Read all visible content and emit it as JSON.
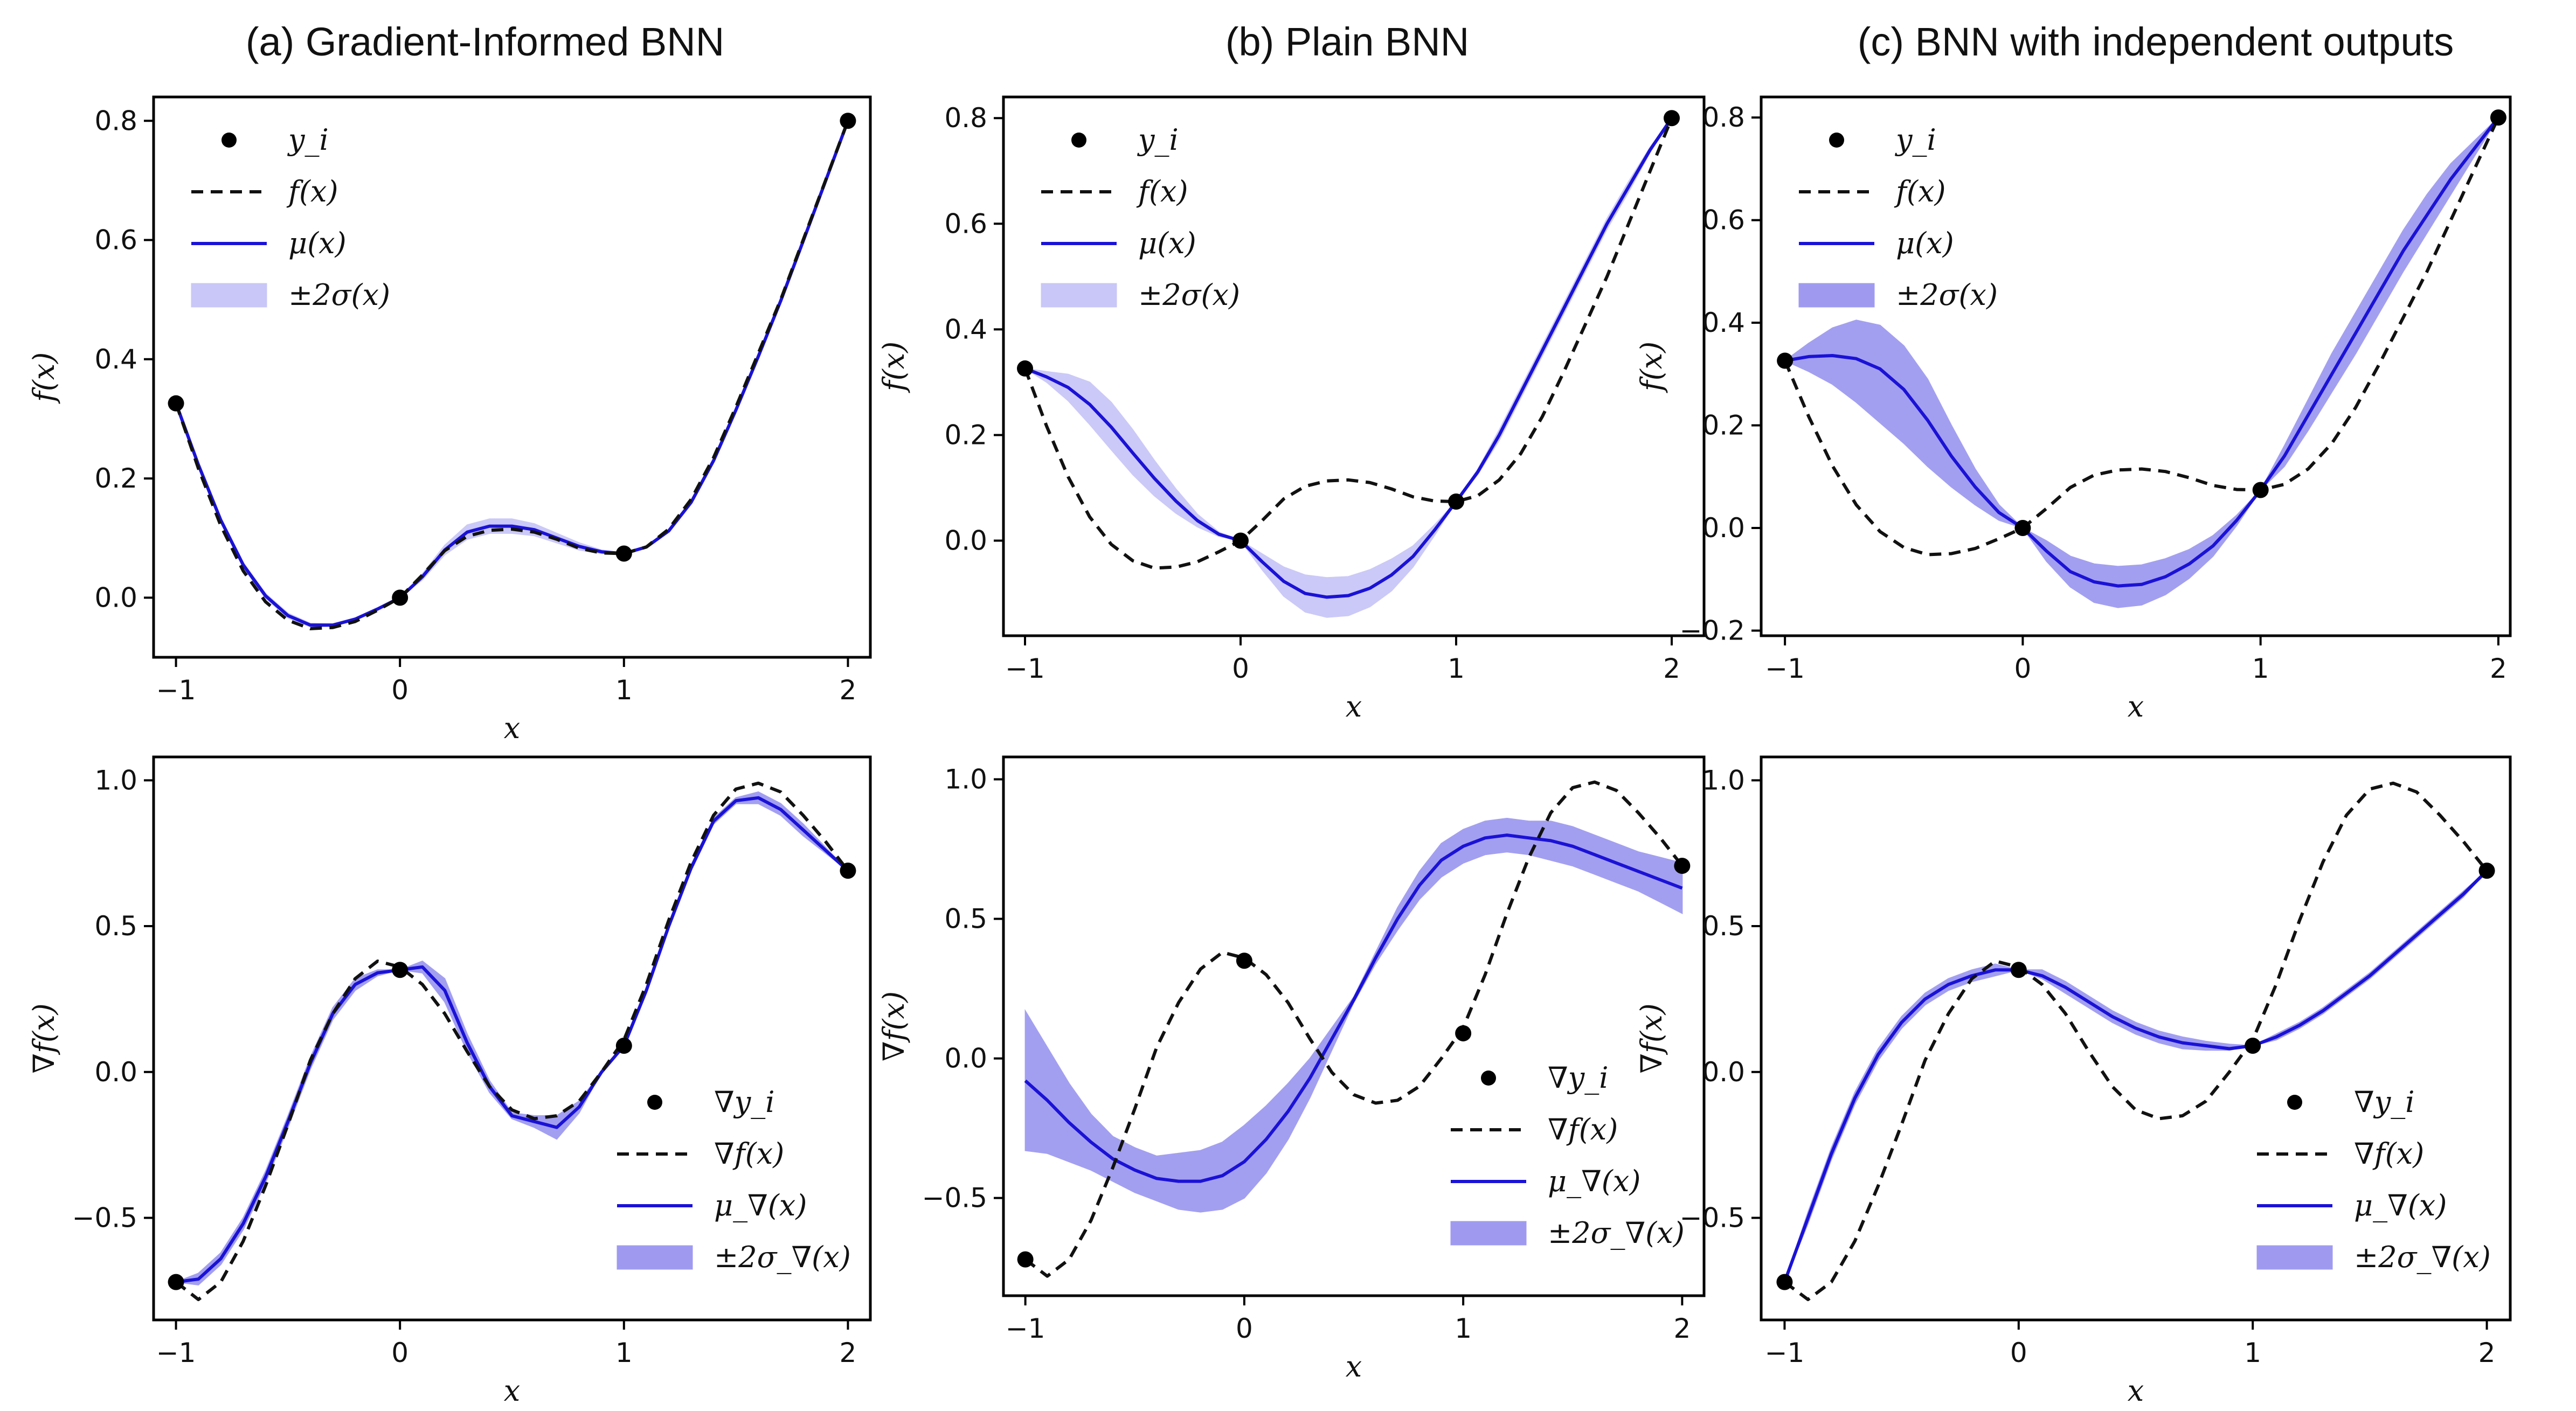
{
  "titles": {
    "a": "(a) Gradient-Informed BNN",
    "b": "(b) Plain BNN",
    "c": "(c) BNN with independent outputs"
  },
  "colors": {
    "mean": "#1a12d6",
    "band_light": "#c9c7f7",
    "band_dark": "#9f9af0",
    "true_fn": "#111111",
    "points": "#000000"
  },
  "chart_data": [
    {
      "id": "a_top",
      "type": "line",
      "title": "(a) Gradient-Informed BNN",
      "xlabel": "x",
      "ylabel": "f(x)",
      "xlim": [
        -1.1,
        2.1
      ],
      "ylim": [
        -0.1,
        0.84
      ],
      "xticks": [
        -1,
        0,
        1,
        2
      ],
      "xtick_labels": [
        "−1",
        "0",
        "1",
        "2"
      ],
      "yticks": [
        0,
        0.2,
        0.4,
        0.6,
        0.8
      ],
      "ytick_labels": [
        "0.0",
        "0.2",
        "0.4",
        "0.6",
        "0.8"
      ],
      "legend": [
        "y_i",
        "f(x)",
        "μ(x)",
        "±2σ(x)"
      ],
      "legend_loc": "upper-left",
      "band_style": "light",
      "points": {
        "x": [
          -1,
          0,
          1,
          2
        ],
        "y": [
          0.326,
          0.0,
          0.074,
          0.8
        ]
      },
      "true_x": [
        -1,
        -0.9,
        -0.8,
        -0.7,
        -0.6,
        -0.5,
        -0.4,
        -0.3,
        -0.2,
        -0.1,
        0,
        0.1,
        0.2,
        0.3,
        0.4,
        0.5,
        0.6,
        0.7,
        0.8,
        0.9,
        1.0,
        1.1,
        1.2,
        1.3,
        1.4,
        1.5,
        1.6,
        1.7,
        1.8,
        1.9,
        2.0
      ],
      "true_y": [
        0.326,
        0.217,
        0.121,
        0.045,
        -0.007,
        -0.038,
        -0.052,
        -0.05,
        -0.04,
        -0.021,
        0.0,
        0.038,
        0.079,
        0.103,
        0.113,
        0.115,
        0.11,
        0.098,
        0.083,
        0.075,
        0.074,
        0.085,
        0.115,
        0.165,
        0.235,
        0.32,
        0.41,
        0.5,
        0.6,
        0.7,
        0.8
      ],
      "mean_y": [
        0.326,
        0.223,
        0.13,
        0.055,
        0.003,
        -0.03,
        -0.046,
        -0.046,
        -0.036,
        -0.019,
        0.0,
        0.035,
        0.08,
        0.11,
        0.12,
        0.12,
        0.114,
        0.1,
        0.086,
        0.077,
        0.074,
        0.085,
        0.112,
        0.16,
        0.23,
        0.315,
        0.405,
        0.498,
        0.598,
        0.699,
        0.8
      ],
      "lower_y": [
        0.326,
        0.22,
        0.126,
        0.051,
        -0.001,
        -0.034,
        -0.049,
        -0.048,
        -0.038,
        -0.02,
        0.0,
        0.03,
        0.072,
        0.098,
        0.108,
        0.108,
        0.104,
        0.092,
        0.08,
        0.074,
        0.074,
        0.083,
        0.11,
        0.157,
        0.227,
        0.312,
        0.402,
        0.495,
        0.595,
        0.697,
        0.8
      ],
      "upper_y": [
        0.326,
        0.226,
        0.134,
        0.059,
        0.007,
        -0.026,
        -0.043,
        -0.044,
        -0.034,
        -0.018,
        0.0,
        0.04,
        0.088,
        0.122,
        0.132,
        0.132,
        0.124,
        0.108,
        0.092,
        0.08,
        0.074,
        0.087,
        0.114,
        0.163,
        0.233,
        0.318,
        0.408,
        0.501,
        0.601,
        0.701,
        0.8
      ]
    },
    {
      "id": "a_bot",
      "type": "line",
      "title": "",
      "xlabel": "x",
      "ylabel": "∇f(x)",
      "xlim": [
        -1.1,
        2.1
      ],
      "ylim": [
        -0.85,
        1.08
      ],
      "xticks": [
        -1,
        0,
        1,
        2
      ],
      "xtick_labels": [
        "−1",
        "0",
        "1",
        "2"
      ],
      "yticks": [
        -0.5,
        0,
        0.5,
        1.0
      ],
      "ytick_labels": [
        "−0.5",
        "0.0",
        "0.5",
        "1.0"
      ],
      "legend": [
        "∇y_i",
        "∇f(x)",
        "μ_∇(x)",
        "±2σ_∇(x)"
      ],
      "legend_loc": "lower-right",
      "band_style": "dark",
      "points": {
        "x": [
          -1,
          0,
          1,
          2
        ],
        "y": [
          -0.72,
          0.35,
          0.09,
          0.69
        ]
      },
      "true_x": [
        -1,
        -0.9,
        -0.8,
        -0.7,
        -0.6,
        -0.5,
        -0.4,
        -0.3,
        -0.2,
        -0.1,
        0,
        0.1,
        0.2,
        0.3,
        0.4,
        0.5,
        0.6,
        0.7,
        0.8,
        0.9,
        1.0,
        1.1,
        1.2,
        1.3,
        1.4,
        1.5,
        1.6,
        1.7,
        1.8,
        1.9,
        2.0
      ],
      "true_y": [
        -0.72,
        -0.78,
        -0.72,
        -0.58,
        -0.39,
        -0.18,
        0.04,
        0.2,
        0.32,
        0.38,
        0.36,
        0.3,
        0.2,
        0.07,
        -0.05,
        -0.13,
        -0.16,
        -0.15,
        -0.1,
        0.0,
        0.11,
        0.3,
        0.52,
        0.72,
        0.88,
        0.97,
        0.99,
        0.96,
        0.88,
        0.79,
        0.69
      ],
      "mean_y": [
        -0.72,
        -0.71,
        -0.64,
        -0.52,
        -0.36,
        -0.17,
        0.03,
        0.2,
        0.3,
        0.34,
        0.35,
        0.36,
        0.28,
        0.1,
        -0.05,
        -0.15,
        -0.17,
        -0.19,
        -0.12,
        0.0,
        0.09,
        0.28,
        0.5,
        0.7,
        0.86,
        0.93,
        0.94,
        0.9,
        0.83,
        0.76,
        0.69
      ],
      "lower_y": [
        -0.72,
        -0.73,
        -0.66,
        -0.54,
        -0.38,
        -0.19,
        0.01,
        0.18,
        0.28,
        0.33,
        0.35,
        0.34,
        0.24,
        0.07,
        -0.07,
        -0.16,
        -0.19,
        -0.23,
        -0.14,
        0.0,
        0.09,
        0.27,
        0.49,
        0.69,
        0.85,
        0.92,
        0.92,
        0.88,
        0.81,
        0.75,
        0.69
      ],
      "upper_y": [
        -0.72,
        -0.69,
        -0.62,
        -0.5,
        -0.34,
        -0.15,
        0.05,
        0.22,
        0.32,
        0.35,
        0.35,
        0.38,
        0.32,
        0.13,
        -0.03,
        -0.14,
        -0.15,
        -0.15,
        -0.1,
        0.0,
        0.09,
        0.29,
        0.51,
        0.71,
        0.87,
        0.94,
        0.96,
        0.92,
        0.85,
        0.77,
        0.69
      ]
    },
    {
      "id": "b_top",
      "type": "line",
      "title": "(b) Plain BNN",
      "xlabel": "x",
      "ylabel": "f(x)",
      "xlim": [
        -1.1,
        2.15
      ],
      "ylim": [
        -0.18,
        0.84
      ],
      "xticks": [
        -1,
        0,
        1,
        2
      ],
      "xtick_labels": [
        "−1",
        "0",
        "1",
        "2"
      ],
      "yticks": [
        0,
        0.2,
        0.4,
        0.6,
        0.8
      ],
      "ytick_labels": [
        "0.0",
        "0.2",
        "0.4",
        "0.6",
        "0.8"
      ],
      "legend": [
        "y_i",
        "f(x)",
        "μ(x)",
        "±2σ(x)"
      ],
      "legend_loc": "upper-left",
      "band_style": "light",
      "points": {
        "x": [
          -1,
          0,
          1,
          2
        ],
        "y": [
          0.326,
          0.0,
          0.074,
          0.8
        ]
      },
      "true_x": [
        -1,
        -0.9,
        -0.8,
        -0.7,
        -0.6,
        -0.5,
        -0.4,
        -0.3,
        -0.2,
        -0.1,
        0,
        0.1,
        0.2,
        0.3,
        0.4,
        0.5,
        0.6,
        0.7,
        0.8,
        0.9,
        1.0,
        1.1,
        1.2,
        1.3,
        1.4,
        1.5,
        1.6,
        1.7,
        1.8,
        1.9,
        2.0
      ],
      "true_y": [
        0.326,
        0.217,
        0.121,
        0.045,
        -0.007,
        -0.038,
        -0.052,
        -0.05,
        -0.04,
        -0.021,
        0.0,
        0.038,
        0.079,
        0.103,
        0.113,
        0.115,
        0.11,
        0.098,
        0.083,
        0.075,
        0.074,
        0.085,
        0.115,
        0.165,
        0.235,
        0.32,
        0.41,
        0.5,
        0.6,
        0.7,
        0.8
      ],
      "mean_y": [
        0.326,
        0.31,
        0.29,
        0.258,
        0.215,
        0.166,
        0.118,
        0.075,
        0.038,
        0.012,
        0.0,
        -0.04,
        -0.077,
        -0.1,
        -0.107,
        -0.104,
        -0.09,
        -0.065,
        -0.03,
        0.02,
        0.074,
        0.13,
        0.2,
        0.28,
        0.36,
        0.44,
        0.52,
        0.6,
        0.67,
        0.74,
        0.8
      ],
      "lower_y": [
        0.326,
        0.3,
        0.265,
        0.22,
        0.172,
        0.125,
        0.085,
        0.052,
        0.026,
        0.008,
        0.0,
        -0.055,
        -0.105,
        -0.135,
        -0.145,
        -0.142,
        -0.125,
        -0.095,
        -0.05,
        0.01,
        0.074,
        0.125,
        0.19,
        0.27,
        0.35,
        0.43,
        0.51,
        0.59,
        0.66,
        0.735,
        0.8
      ],
      "upper_y": [
        0.326,
        0.32,
        0.315,
        0.3,
        0.262,
        0.21,
        0.152,
        0.098,
        0.05,
        0.016,
        0.0,
        -0.025,
        -0.05,
        -0.065,
        -0.07,
        -0.068,
        -0.055,
        -0.035,
        -0.01,
        0.03,
        0.074,
        0.135,
        0.21,
        0.29,
        0.37,
        0.45,
        0.53,
        0.61,
        0.68,
        0.745,
        0.8
      ]
    },
    {
      "id": "b_bot",
      "type": "line",
      "title": "",
      "xlabel": "x",
      "ylabel": "∇f(x)",
      "xlim": [
        -1.1,
        2.1
      ],
      "ylim": [
        -0.85,
        1.08
      ],
      "xticks": [
        -1,
        0,
        1,
        2
      ],
      "xtick_labels": [
        "−1",
        "0",
        "1",
        "2"
      ],
      "yticks": [
        -0.5,
        0,
        0.5,
        1.0
      ],
      "ytick_labels": [
        "−0.5",
        "0.0",
        "0.5",
        "1.0"
      ],
      "legend": [
        "∇y_i",
        "∇f(x)",
        "μ_∇(x)",
        "±2σ_∇(x)"
      ],
      "legend_loc": "lower-right",
      "band_style": "dark",
      "points": {
        "x": [
          -1,
          0,
          1,
          2
        ],
        "y": [
          -0.72,
          0.35,
          0.09,
          0.69
        ]
      },
      "true_x": [
        -1,
        -0.9,
        -0.8,
        -0.7,
        -0.6,
        -0.5,
        -0.4,
        -0.3,
        -0.2,
        -0.1,
        0,
        0.1,
        0.2,
        0.3,
        0.4,
        0.5,
        0.6,
        0.7,
        0.8,
        0.9,
        1.0,
        1.1,
        1.2,
        1.3,
        1.4,
        1.5,
        1.6,
        1.7,
        1.8,
        1.9,
        2.0
      ],
      "true_y": [
        -0.72,
        -0.78,
        -0.72,
        -0.58,
        -0.39,
        -0.18,
        0.04,
        0.2,
        0.32,
        0.38,
        0.36,
        0.3,
        0.2,
        0.07,
        -0.05,
        -0.13,
        -0.16,
        -0.15,
        -0.1,
        0.0,
        0.11,
        0.3,
        0.52,
        0.72,
        0.88,
        0.97,
        0.99,
        0.96,
        0.88,
        0.79,
        0.69
      ],
      "mean_y": [
        -0.08,
        -0.15,
        -0.23,
        -0.3,
        -0.36,
        -0.4,
        -0.43,
        -0.44,
        -0.44,
        -0.42,
        -0.37,
        -0.29,
        -0.19,
        -0.07,
        0.07,
        0.21,
        0.36,
        0.5,
        0.62,
        0.71,
        0.76,
        0.79,
        0.8,
        0.79,
        0.78,
        0.76,
        0.73,
        0.7,
        0.67,
        0.64,
        0.61
      ],
      "lower_y": [
        -0.33,
        -0.34,
        -0.37,
        -0.4,
        -0.44,
        -0.48,
        -0.51,
        -0.54,
        -0.55,
        -0.54,
        -0.5,
        -0.41,
        -0.29,
        -0.14,
        0.03,
        0.2,
        0.34,
        0.46,
        0.57,
        0.65,
        0.7,
        0.73,
        0.74,
        0.73,
        0.71,
        0.69,
        0.66,
        0.63,
        0.6,
        0.56,
        0.52
      ],
      "upper_y": [
        0.17,
        0.04,
        -0.09,
        -0.2,
        -0.28,
        -0.32,
        -0.35,
        -0.34,
        -0.33,
        -0.3,
        -0.24,
        -0.17,
        -0.09,
        0.0,
        0.11,
        0.22,
        0.38,
        0.54,
        0.67,
        0.77,
        0.82,
        0.85,
        0.86,
        0.85,
        0.85,
        0.83,
        0.8,
        0.77,
        0.74,
        0.72,
        0.7
      ]
    },
    {
      "id": "c_top",
      "type": "line",
      "title": "(c) BNN with independent outputs",
      "xlabel": "x",
      "ylabel": "f(x)",
      "xlim": [
        -1.1,
        2.05
      ],
      "ylim": [
        -0.21,
        0.84
      ],
      "xticks": [
        -1,
        0,
        1,
        2
      ],
      "xtick_labels": [
        "−1",
        "0",
        "1",
        "2"
      ],
      "yticks": [
        -0.2,
        0,
        0.2,
        0.4,
        0.6,
        0.8
      ],
      "ytick_labels": [
        "−0.2",
        "0.0",
        "0.2",
        "0.4",
        "0.6",
        "0.8"
      ],
      "legend": [
        "y_i",
        "f(x)",
        "μ(x)",
        "±2σ(x)"
      ],
      "legend_loc": "upper-left",
      "band_style": "dark",
      "points": {
        "x": [
          -1,
          0,
          1,
          2
        ],
        "y": [
          0.326,
          0.0,
          0.074,
          0.8
        ]
      },
      "true_x": [
        -1,
        -0.9,
        -0.8,
        -0.7,
        -0.6,
        -0.5,
        -0.4,
        -0.3,
        -0.2,
        -0.1,
        0,
        0.1,
        0.2,
        0.3,
        0.4,
        0.5,
        0.6,
        0.7,
        0.8,
        0.9,
        1.0,
        1.1,
        1.2,
        1.3,
        1.4,
        1.5,
        1.6,
        1.7,
        1.8,
        1.9,
        2.0
      ],
      "true_y": [
        0.326,
        0.217,
        0.121,
        0.045,
        -0.007,
        -0.038,
        -0.052,
        -0.05,
        -0.04,
        -0.021,
        0.0,
        0.038,
        0.079,
        0.103,
        0.113,
        0.115,
        0.11,
        0.098,
        0.083,
        0.075,
        0.074,
        0.085,
        0.115,
        0.165,
        0.235,
        0.32,
        0.41,
        0.5,
        0.6,
        0.7,
        0.8
      ],
      "mean_y": [
        0.326,
        0.334,
        0.336,
        0.33,
        0.31,
        0.27,
        0.21,
        0.14,
        0.08,
        0.03,
        0.0,
        -0.045,
        -0.085,
        -0.105,
        -0.113,
        -0.11,
        -0.095,
        -0.07,
        -0.035,
        0.015,
        0.074,
        0.14,
        0.22,
        0.3,
        0.38,
        0.46,
        0.54,
        0.61,
        0.68,
        0.74,
        0.8
      ],
      "lower_y": [
        0.326,
        0.305,
        0.28,
        0.245,
        0.205,
        0.165,
        0.12,
        0.08,
        0.045,
        0.015,
        0.0,
        -0.065,
        -0.115,
        -0.145,
        -0.155,
        -0.15,
        -0.13,
        -0.098,
        -0.055,
        0.005,
        0.074,
        0.12,
        0.19,
        0.265,
        0.34,
        0.42,
        0.5,
        0.575,
        0.65,
        0.725,
        0.8
      ],
      "upper_y": [
        0.326,
        0.36,
        0.39,
        0.405,
        0.395,
        0.355,
        0.29,
        0.2,
        0.115,
        0.045,
        0.0,
        -0.025,
        -0.055,
        -0.07,
        -0.075,
        -0.072,
        -0.06,
        -0.042,
        -0.015,
        0.025,
        0.074,
        0.16,
        0.25,
        0.34,
        0.42,
        0.5,
        0.58,
        0.65,
        0.71,
        0.755,
        0.8
      ]
    },
    {
      "id": "c_bot",
      "type": "line",
      "title": "",
      "xlabel": "x",
      "ylabel": "∇f(x)",
      "xlim": [
        -1.1,
        2.1
      ],
      "ylim": [
        -0.85,
        1.08
      ],
      "xticks": [
        -1,
        0,
        1,
        2
      ],
      "xtick_labels": [
        "−1",
        "0",
        "1",
        "2"
      ],
      "yticks": [
        -0.5,
        0,
        0.5,
        1.0
      ],
      "ytick_labels": [
        "−0.5",
        "0.0",
        "0.5",
        "1.0"
      ],
      "legend": [
        "∇y_i",
        "∇f(x)",
        "μ_∇(x)",
        "±2σ_∇(x)"
      ],
      "legend_loc": "lower-right",
      "band_style": "dark",
      "points": {
        "x": [
          -1,
          0,
          1,
          2
        ],
        "y": [
          -0.72,
          0.35,
          0.09,
          0.69
        ]
      },
      "true_x": [
        -1,
        -0.9,
        -0.8,
        -0.7,
        -0.6,
        -0.5,
        -0.4,
        -0.3,
        -0.2,
        -0.1,
        0,
        0.1,
        0.2,
        0.3,
        0.4,
        0.5,
        0.6,
        0.7,
        0.8,
        0.9,
        1.0,
        1.1,
        1.2,
        1.3,
        1.4,
        1.5,
        1.6,
        1.7,
        1.8,
        1.9,
        2.0
      ],
      "true_y": [
        -0.72,
        -0.78,
        -0.72,
        -0.58,
        -0.39,
        -0.18,
        0.04,
        0.2,
        0.32,
        0.38,
        0.36,
        0.3,
        0.2,
        0.07,
        -0.05,
        -0.13,
        -0.16,
        -0.15,
        -0.1,
        0.0,
        0.11,
        0.3,
        0.52,
        0.72,
        0.88,
        0.97,
        0.99,
        0.96,
        0.88,
        0.79,
        0.69
      ],
      "mean_y": [
        -0.72,
        -0.5,
        -0.28,
        -0.09,
        0.06,
        0.17,
        0.25,
        0.3,
        0.33,
        0.35,
        0.35,
        0.33,
        0.29,
        0.24,
        0.19,
        0.15,
        0.12,
        0.1,
        0.09,
        0.08,
        0.09,
        0.12,
        0.16,
        0.21,
        0.27,
        0.33,
        0.4,
        0.47,
        0.54,
        0.61,
        0.69
      ],
      "lower_y": [
        -0.72,
        -0.52,
        -0.3,
        -0.11,
        0.04,
        0.15,
        0.23,
        0.28,
        0.31,
        0.33,
        0.35,
        0.32,
        0.27,
        0.22,
        0.17,
        0.13,
        0.1,
        0.08,
        0.075,
        0.075,
        0.09,
        0.11,
        0.15,
        0.2,
        0.26,
        0.32,
        0.39,
        0.46,
        0.53,
        0.6,
        0.69
      ],
      "upper_y": [
        -0.72,
        -0.48,
        -0.26,
        -0.07,
        0.08,
        0.19,
        0.27,
        0.32,
        0.35,
        0.37,
        0.35,
        0.35,
        0.31,
        0.26,
        0.21,
        0.17,
        0.14,
        0.12,
        0.105,
        0.095,
        0.09,
        0.13,
        0.17,
        0.22,
        0.28,
        0.34,
        0.41,
        0.48,
        0.55,
        0.62,
        0.69
      ]
    }
  ]
}
